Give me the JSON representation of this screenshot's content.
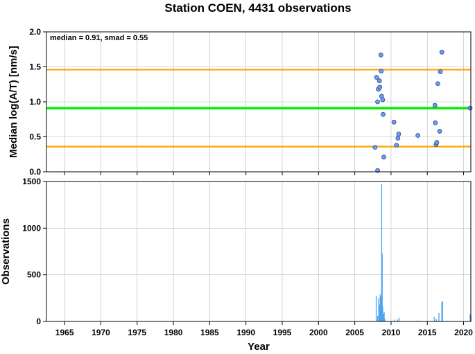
{
  "chart_data": [
    {
      "type": "scatter",
      "title": "Station COEN, 4431 observations",
      "ylabel": "Median log(A/T) [nm/s]",
      "annotation": "median = 0.91, smad = 0.55",
      "xlim": [
        1962.5,
        2021
      ],
      "ylim": [
        0,
        2
      ],
      "yticks": [
        "0.0",
        "0.5",
        "1.0",
        "1.5",
        "2.0"
      ],
      "grid": true,
      "reference_lines": [
        {
          "value": 0.91,
          "color": "#00ee00"
        },
        {
          "value": 1.46,
          "color": "#ffa500"
        },
        {
          "value": 0.36,
          "color": "#ffa500"
        }
      ],
      "point_color": "#6f9cf0",
      "points": [
        {
          "x": 2007.8,
          "y": 0.35
        },
        {
          "x": 2008.0,
          "y": 1.35
        },
        {
          "x": 2008.15,
          "y": 1.0
        },
        {
          "x": 2008.25,
          "y": 1.18
        },
        {
          "x": 2008.4,
          "y": 1.3
        },
        {
          "x": 2008.45,
          "y": 1.21
        },
        {
          "x": 2008.6,
          "y": 1.67
        },
        {
          "x": 2008.65,
          "y": 1.44
        },
        {
          "x": 2008.7,
          "y": 1.08
        },
        {
          "x": 2008.85,
          "y": 1.03
        },
        {
          "x": 2008.9,
          "y": 0.82
        },
        {
          "x": 2009.0,
          "y": 0.21
        },
        {
          "x": 2008.15,
          "y": 0.02
        },
        {
          "x": 2010.4,
          "y": 0.71
        },
        {
          "x": 2010.75,
          "y": 0.38
        },
        {
          "x": 2010.95,
          "y": 0.48
        },
        {
          "x": 2011.05,
          "y": 0.54
        },
        {
          "x": 2013.7,
          "y": 0.52
        },
        {
          "x": 2016.05,
          "y": 0.95
        },
        {
          "x": 2016.1,
          "y": 0.7
        },
        {
          "x": 2016.2,
          "y": 0.39
        },
        {
          "x": 2016.3,
          "y": 0.42
        },
        {
          "x": 2016.45,
          "y": 1.26
        },
        {
          "x": 2016.7,
          "y": 0.58
        },
        {
          "x": 2016.8,
          "y": 1.43
        },
        {
          "x": 2017.0,
          "y": 1.71
        },
        {
          "x": 2020.9,
          "y": 0.91
        }
      ]
    },
    {
      "type": "bar",
      "xlabel": "Year",
      "ylabel": "Observations",
      "xlim": [
        1962.5,
        2021
      ],
      "ylim": [
        0,
        1500
      ],
      "xticks": [
        1965,
        1970,
        1975,
        1980,
        1985,
        1990,
        1995,
        2000,
        2005,
        2010,
        2015,
        2020
      ],
      "yticks": [
        "0",
        "500",
        "1000",
        "1500"
      ],
      "grid": true,
      "bar_color": "#4aa3f0",
      "bars": [
        {
          "x": 2007.95,
          "v": 275
        },
        {
          "x": 2008.15,
          "v": 60
        },
        {
          "x": 2008.3,
          "v": 250
        },
        {
          "x": 2008.4,
          "v": 180
        },
        {
          "x": 2008.5,
          "v": 290
        },
        {
          "x": 2008.6,
          "v": 270
        },
        {
          "x": 2008.7,
          "v": 1470
        },
        {
          "x": 2008.78,
          "v": 730
        },
        {
          "x": 2008.85,
          "v": 160
        },
        {
          "x": 2008.95,
          "v": 80
        },
        {
          "x": 2009.05,
          "v": 100
        },
        {
          "x": 2009.15,
          "v": 25
        },
        {
          "x": 2010.5,
          "v": 20
        },
        {
          "x": 2010.9,
          "v": 20
        },
        {
          "x": 2011.1,
          "v": 40
        },
        {
          "x": 2013.7,
          "v": 10
        },
        {
          "x": 2015.95,
          "v": 50
        },
        {
          "x": 2016.25,
          "v": 25
        },
        {
          "x": 2016.6,
          "v": 90
        },
        {
          "x": 2017.0,
          "v": 210
        },
        {
          "x": 2017.1,
          "v": 215
        },
        {
          "x": 2020.9,
          "v": 75
        },
        {
          "x": 2021.0,
          "v": 60
        }
      ]
    }
  ]
}
